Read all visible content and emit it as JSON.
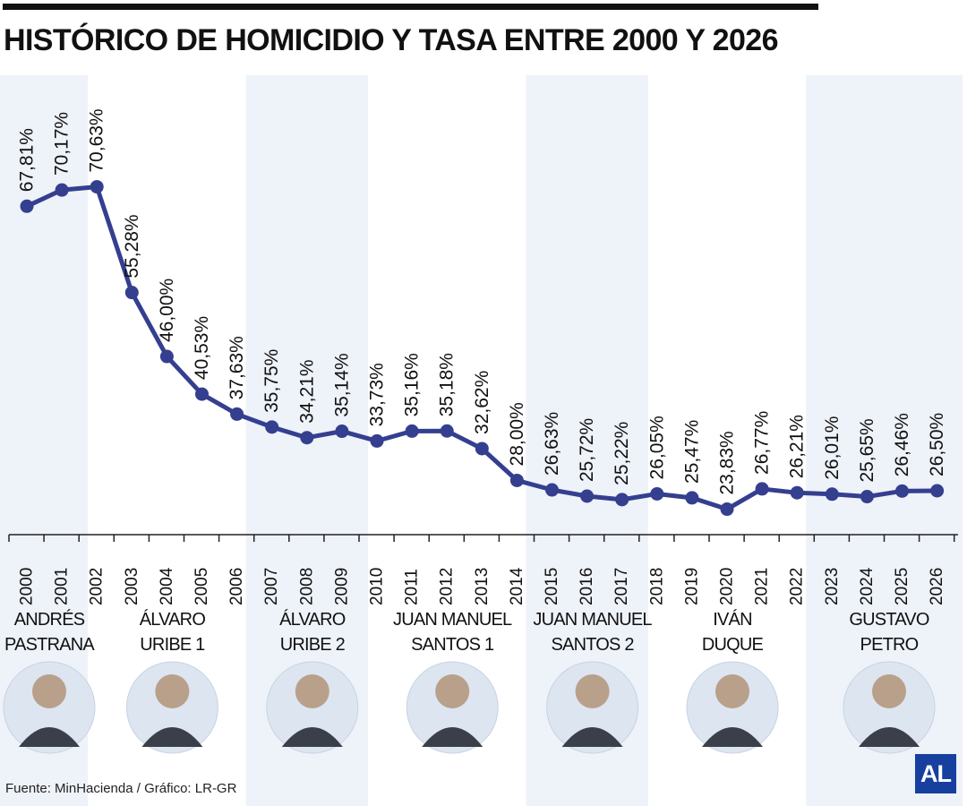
{
  "header": {
    "title": "HISTÓRICO DE HOMICIDIO Y TASA ENTRE 2000 Y 2026"
  },
  "chart_data": {
    "type": "line",
    "title": "HISTÓRICO DE HOMICIDIO Y TASA ENTRE 2000 Y 2026",
    "xlabel": "",
    "ylabel": "",
    "grid": false,
    "legend": "none",
    "x": [
      "2000",
      "2001",
      "2002",
      "2003",
      "2004",
      "2005",
      "2006",
      "2007",
      "2008",
      "2009",
      "2010",
      "2011",
      "2012",
      "2013",
      "2014",
      "2015",
      "2016",
      "2017",
      "2018",
      "2019",
      "2020",
      "2021",
      "2022",
      "2023",
      "2024",
      "2025",
      "2026"
    ],
    "series": [
      {
        "values": [
          67.81,
          70.17,
          70.63,
          55.28,
          46.0,
          40.53,
          37.63,
          35.75,
          34.21,
          35.14,
          33.73,
          35.16,
          35.18,
          32.62,
          28.0,
          26.63,
          25.72,
          25.22,
          26.05,
          25.47,
          23.83,
          26.77,
          26.21,
          26.01,
          25.65,
          26.46,
          26.5
        ],
        "labels": [
          "67,81%",
          "70,17%",
          "70,63%",
          "55,28%",
          "46,00%",
          "40,53%",
          "37,63%",
          "35,75%",
          "34,21%",
          "35,14%",
          "33,73%",
          "35,16%",
          "35,18%",
          "32,62%",
          "28,00%",
          "26,63%",
          "25,72%",
          "25,22%",
          "26,05%",
          "25,47%",
          "23,83%",
          "26,77%",
          "26,21%",
          "26,01%",
          "25,65%",
          "26,46%",
          "26,50%"
        ]
      }
    ],
    "ylim": [
      20,
      75
    ],
    "colors": {
      "line": "#343f8f",
      "band": "#eef2f9",
      "axis": "#222222"
    },
    "periods": [
      {
        "name": "ANDRÉS\nPASTRANA",
        "start": 2000,
        "end": 2002,
        "shaded": true
      },
      {
        "name": "ÁLVARO\nURIBE 1",
        "start": 2002,
        "end": 2006,
        "shaded": false
      },
      {
        "name": "ÁLVARO\nURIBE 2",
        "start": 2006,
        "end": 2010,
        "shaded": true
      },
      {
        "name": "JUAN MANUEL\nSANTOS 1",
        "start": 2010,
        "end": 2014,
        "shaded": false
      },
      {
        "name": "JUAN MANUEL\nSANTOS 2",
        "start": 2014,
        "end": 2018,
        "shaded": true
      },
      {
        "name": "IVÁN\nDUQUE",
        "start": 2018,
        "end": 2022,
        "shaded": false
      },
      {
        "name": "GUSTAVO\nPETRO",
        "start": 2022,
        "end": 2026,
        "shaded": true
      }
    ]
  },
  "footer": {
    "source": "Fuente: MinHacienda / Gráfico: LR-GR",
    "logo": "AL"
  }
}
